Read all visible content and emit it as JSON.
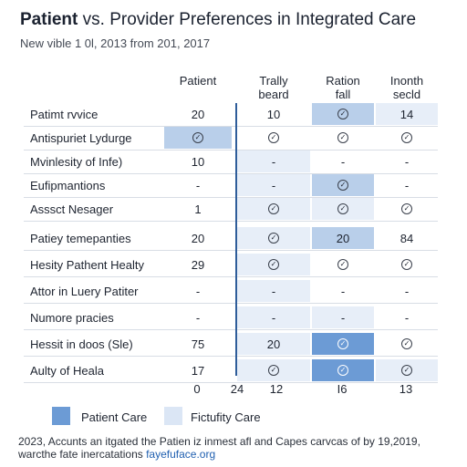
{
  "header": {
    "title_bold": "Patient",
    "title_rest": " vs. Provider Preferences in Integrated Care",
    "subtitle": "New vible 1 0l, 2013 from 201, 2017"
  },
  "columns": [
    "Patient",
    "Trally\nbeard",
    "Ration\nfall",
    "Inonth\nsecld"
  ],
  "rows": [
    {
      "label": "Patimt rvvice",
      "cells": [
        "20",
        "10",
        "check",
        "14"
      ]
    },
    {
      "label": "Antispuriet Lydurge",
      "cells": [
        "check",
        "check",
        "check",
        "check"
      ]
    },
    {
      "label": "Mvinlesity of Infe)",
      "cells": [
        "10",
        "-",
        "-",
        "-"
      ]
    },
    {
      "label": "Eufipmantions",
      "cells": [
        "-",
        "-",
        "check",
        "-"
      ]
    },
    {
      "label": "Asssct Nesager",
      "cells": [
        "1",
        "check",
        "check",
        "check"
      ]
    },
    {
      "label": "Patiey temepanties",
      "cells": [
        "20",
        "check",
        "20",
        "84"
      ]
    },
    {
      "label": "Hesity Pathent Healty",
      "cells": [
        "29",
        "check",
        "check",
        "check"
      ]
    },
    {
      "label": "Attor in Luery Patiter",
      "cells": [
        "-",
        "-",
        "-",
        "-"
      ]
    },
    {
      "label": "Numore pracies",
      "cells": [
        "-",
        "-",
        "-",
        "-"
      ]
    },
    {
      "label": "Hessit in doos (Sle)",
      "cells": [
        "75",
        "20",
        "check",
        "check"
      ]
    },
    {
      "label": "Aulty of Heala",
      "cells": [
        "17",
        "check",
        "check",
        "check"
      ]
    }
  ],
  "highlights": {
    "light": [
      "0-2",
      "0-3",
      "2-1",
      "3-1",
      "4-1",
      "4-2",
      "5-1",
      "6-1",
      "7-1",
      "8-1",
      "8-2",
      "9-1",
      "10-1",
      "10-3"
    ],
    "mid": [
      "0-2",
      "1-0",
      "3-2",
      "5-2",
      "9-2"
    ],
    "dark": [
      "9-2",
      "10-2"
    ]
  },
  "footer": {
    "values": [
      "0",
      "24",
      "12",
      "I6",
      "13"
    ]
  },
  "legend": [
    {
      "label": "Patient Care",
      "color": "#6c9bd5"
    },
    {
      "label": "Fictufity Care",
      "color": "#dbe6f5"
    }
  ],
  "note": {
    "line1": "2023, Accunts an itgated the Patien iz inmest afl and Capes carvcas of by 19,2019,",
    "line2_prefix": "warcthe fate inercatations ",
    "line2_link": "fayefuface.org"
  },
  "chart_data": {
    "type": "table",
    "title": "Patient vs. Provider Preferences in Integrated Care",
    "subtitle": "New vible 1 0l, 2013 from 201, 2017",
    "columns": [
      "Patient",
      "Trally beard",
      "Ration fall",
      "Inonth secld"
    ],
    "rows": [
      [
        "Patimt rvvice",
        "20",
        "10",
        "check",
        "14"
      ],
      [
        "Antispuriet Lydurge",
        "check",
        "check",
        "check",
        "check"
      ],
      [
        "Mvinlesity of Infe)",
        "10",
        "-",
        "-",
        "-"
      ],
      [
        "Eufipmantions",
        "-",
        "-",
        "check",
        "-"
      ],
      [
        "Asssct Nesager",
        "1",
        "check",
        "check",
        "check"
      ],
      [
        "Patiey temepanties",
        "20",
        "check",
        "20",
        "84"
      ],
      [
        "Hesity Pathent Healty",
        "29",
        "check",
        "check",
        "check"
      ],
      [
        "Attor in Luery Patiter",
        "-",
        "-",
        "-",
        "-"
      ],
      [
        "Numore pracies",
        "-",
        "-",
        "-",
        "-"
      ],
      [
        "Hessit in doos (Sle)",
        "75",
        "20",
        "check",
        "check"
      ],
      [
        "Aulty of Heala",
        "17",
        "check",
        "check",
        "check"
      ]
    ],
    "footer": [
      "0",
      "24",
      "12",
      "I6",
      "13"
    ],
    "legend": [
      "Patient Care",
      "Fictufity Care"
    ]
  }
}
